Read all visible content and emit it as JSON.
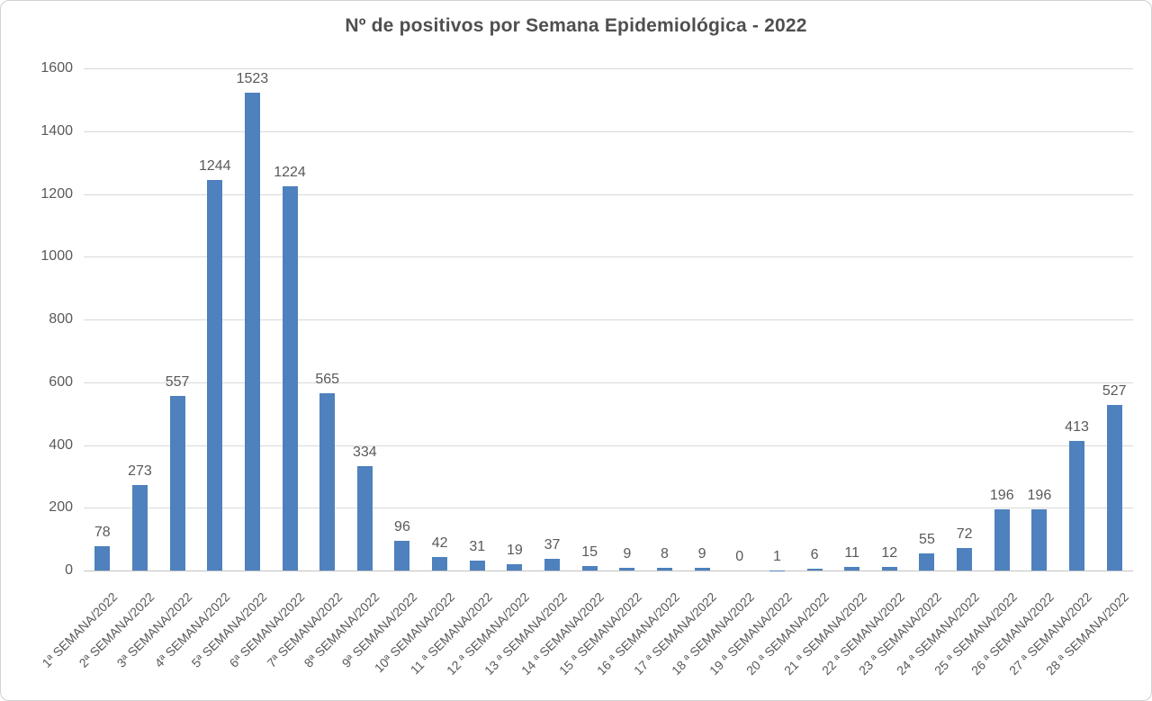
{
  "chart_data": {
    "type": "bar",
    "title": "Nº de positivos por Semana Epidemiológica - 2022",
    "categories": [
      "1ª SEMANA/2022",
      "2ª SEMANA/2022",
      "3ª SEMANA/2022",
      "4ª SEMANA/2022",
      "5ª SEMANA/2022",
      "6ª SEMANA/2022",
      "7ª SEMANA/2022",
      "8ª SEMANA/2022",
      "9ª SEMANA/2022",
      "10ª SEMANA/2022",
      "11 ª SEMANA/2022",
      "12 ª SEMANA/2022",
      "13 ª SEMANA/2022",
      "14 ª SEMANA/2022",
      "15 ª SEMANA/2022",
      "16 ª SEMANA/2022",
      "17 ª SEMANA/2022",
      "18 ª SEMANA/2022",
      "19 ª SEMANA/2022",
      "20 ª SEMANA/2022",
      "21 ª SEMANA/2022",
      "22 ª SEMANA/2022",
      "23 ª SEMANA/2022",
      "24 ª SEMANA/2022",
      "25 ª SEMANA/2022",
      "26 ª SEMANA/2022",
      "27 ª SEMANA/2022",
      "28 ª SEMANA/2022"
    ],
    "values": [
      78,
      273,
      557,
      1244,
      1523,
      1224,
      565,
      334,
      96,
      42,
      31,
      19,
      37,
      15,
      9,
      8,
      9,
      0,
      1,
      6,
      11,
      12,
      55,
      72,
      196,
      196,
      413,
      527
    ],
    "data_labels": true,
    "xlabel": "",
    "ylabel": "",
    "ylim": [
      0,
      1600
    ],
    "yticks": [
      0,
      200,
      400,
      600,
      800,
      1000,
      1200,
      1400,
      1600
    ],
    "grid": true,
    "legend_position": "none",
    "colors": {
      "bar": "#4e81bd",
      "gridline": "#d9d9d9",
      "axis_line": "#c3c3c3",
      "text": "#595959",
      "title": "#4f4f4f"
    }
  }
}
